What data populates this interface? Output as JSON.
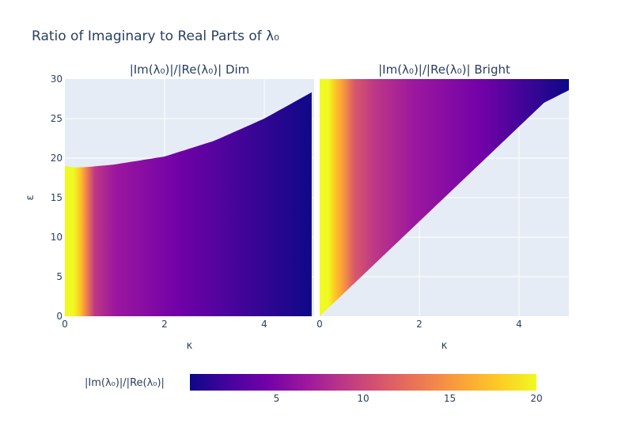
{
  "chart_data": {
    "type": "heatmap",
    "title": "Ratio of Imaginary to Real Parts of λ₀",
    "colorscale": "plasma",
    "colorscale_stops": [
      "#0d0887",
      "#46039f",
      "#7201a8",
      "#9c179e",
      "#bd3786",
      "#d8576b",
      "#ed7953",
      "#fb9f3a",
      "#fdca26",
      "#f0f921"
    ],
    "plot_background": "#e5ecf6",
    "colorbar": {
      "title": "|Im(λ₀)|/|Re(λ₀)|",
      "range": [
        0,
        20
      ],
      "ticks": [
        5,
        10,
        15,
        20
      ],
      "tick_labels": [
        "5",
        "10",
        "15",
        "20"
      ],
      "orientation": "horizontal",
      "placement": "bottom"
    },
    "panels": [
      {
        "title": "|Im(λ₀)|/|Re(λ₀)| Dim",
        "xlabel": "κ",
        "ylabel": "ε",
        "xlim": [
          0,
          5
        ],
        "ylim": [
          0,
          30
        ],
        "x_ticks": [
          0,
          2,
          4
        ],
        "x_tick_labels": [
          "0",
          "2",
          "4"
        ],
        "y_ticks": [
          0,
          5,
          10,
          15,
          20,
          25,
          30
        ],
        "y_tick_labels": [
          "0",
          "5",
          "10",
          "15",
          "20",
          "25",
          "30"
        ],
        "boundary_kappa": [
          0,
          0.2,
          0.5,
          1.0,
          2.0,
          3.0,
          4.0,
          5.0
        ],
        "boundary_epsilon": [
          19.0,
          18.8,
          18.9,
          19.2,
          20.2,
          22.2,
          25.0,
          28.5
        ],
        "kappa_extent": 4.95,
        "valid_region": "below boundary"
      },
      {
        "title": "|Im(λ₀)|/|Re(λ₀)| Bright",
        "xlabel": "κ",
        "ylabel": "",
        "xlim": [
          0,
          5
        ],
        "ylim": [
          0,
          30
        ],
        "x_ticks": [
          0,
          2,
          4
        ],
        "x_tick_labels": [
          "0",
          "2",
          "4"
        ],
        "y_ticks": [
          0,
          5,
          10,
          15,
          20,
          25,
          30
        ],
        "y_tick_labels": [],
        "boundary_kappa": [
          0,
          1.0,
          2.0,
          3.0,
          4.0,
          4.5,
          5.0
        ],
        "boundary_epsilon": [
          0,
          6.0,
          12.0,
          18.0,
          24.0,
          27.0,
          28.6
        ],
        "kappa_extent": 5.0,
        "valid_region": "above boundary"
      }
    ]
  }
}
